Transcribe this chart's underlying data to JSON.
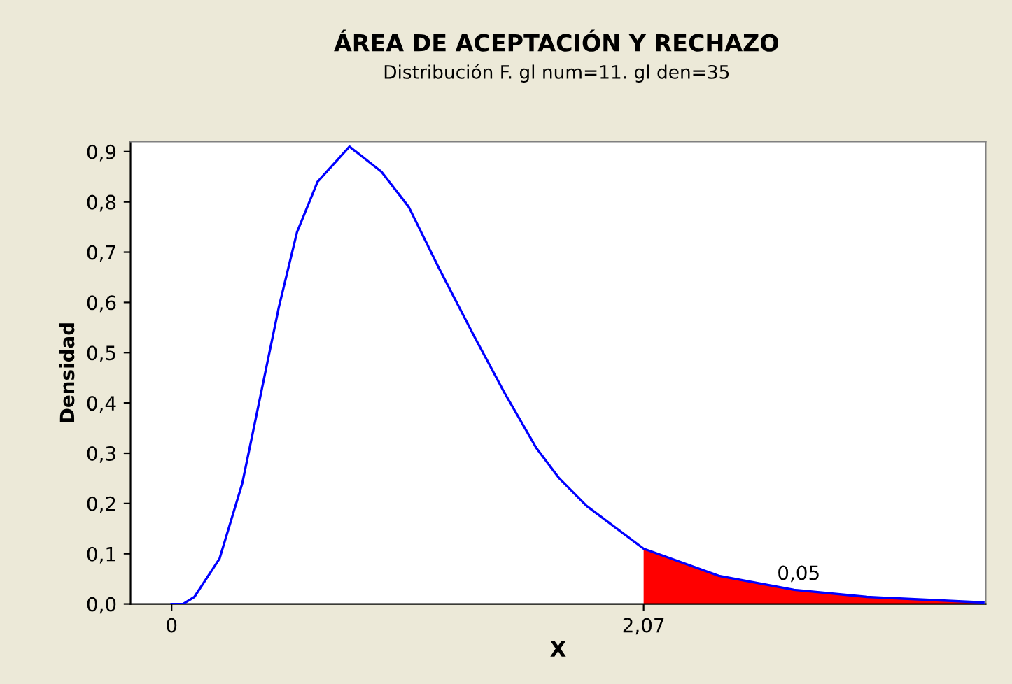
{
  "chart_data": {
    "type": "line",
    "title": "ÁREA DE ACEPTACIÓN Y RECHAZO",
    "subtitle": "Distribución F. gl num=11. gl den=35",
    "xlabel": "X",
    "ylabel": "Densidad",
    "series": [
      {
        "color": "#0000ff",
        "x": [
          0.0,
          0.05,
          0.1,
          0.21,
          0.31,
          0.39,
          0.47,
          0.55,
          0.64,
          0.78,
          0.92,
          1.04,
          1.17,
          1.33,
          1.46,
          1.6,
          1.7,
          1.82,
          2.07,
          2.4,
          2.73,
          3.05,
          3.56
        ],
        "values": [
          0.0,
          0.0,
          0.014,
          0.09,
          0.24,
          0.415,
          0.59,
          0.74,
          0.84,
          0.91,
          0.86,
          0.79,
          0.67,
          0.53,
          0.42,
          0.31,
          0.25,
          0.195,
          0.11,
          0.056,
          0.028,
          0.014,
          0.003
        ]
      },
      {
        "type": "area",
        "color": "#ff0000",
        "x": [
          2.07,
          2.4,
          2.73,
          3.05,
          3.56
        ],
        "values": [
          0.11,
          0.056,
          0.028,
          0.014,
          0.003
        ]
      }
    ],
    "annotations": [
      {
        "text": "0,05",
        "x": 2.75,
        "y": 0.04
      }
    ],
    "xlim": [
      -0.18,
      3.57
    ],
    "xticks": [
      {
        "value": 0,
        "label": "0"
      },
      {
        "value": 2.07,
        "label": "2,07"
      }
    ],
    "ylim": [
      0,
      0.92
    ],
    "yticks": [
      {
        "value": 0,
        "label": "0,0"
      },
      {
        "value": 0.1,
        "label": "0,1"
      },
      {
        "value": 0.2,
        "label": "0,2"
      },
      {
        "value": 0.3,
        "label": "0,3"
      },
      {
        "value": 0.4,
        "label": "0,4"
      },
      {
        "value": 0.5,
        "label": "0,5"
      },
      {
        "value": 0.6,
        "label": "0,6"
      },
      {
        "value": 0.7,
        "label": "0,7"
      },
      {
        "value": 0.8,
        "label": "0,8"
      },
      {
        "value": 0.9,
        "label": "0,9"
      }
    ],
    "grid": false,
    "legend": false,
    "marker": "none",
    "line_style": "solid"
  }
}
